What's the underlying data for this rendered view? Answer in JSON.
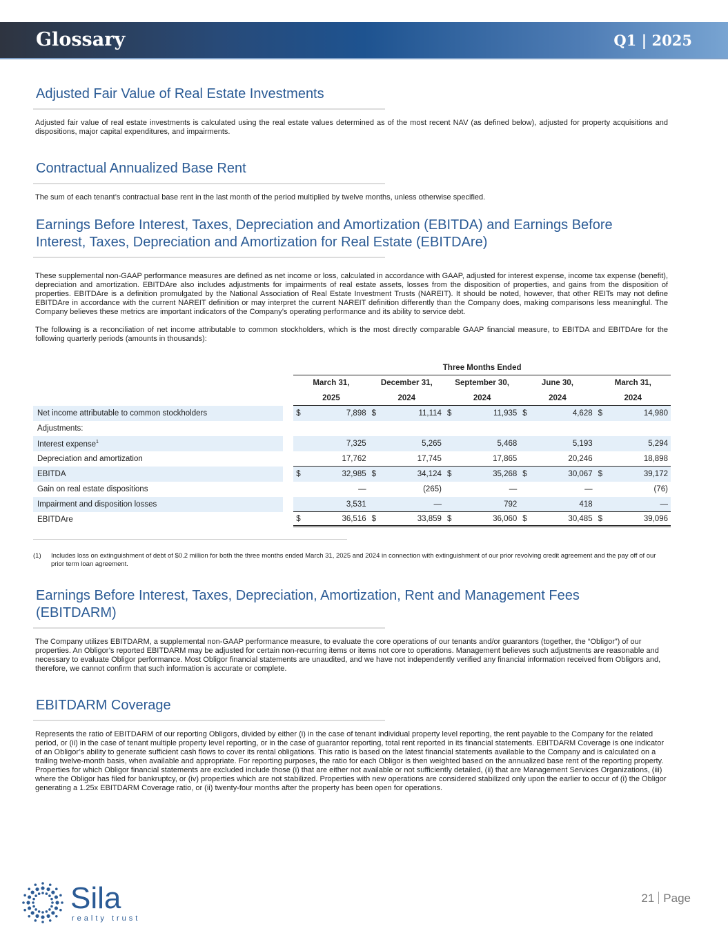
{
  "header": {
    "title": "Glossary",
    "quarter": "Q1",
    "year": "2025"
  },
  "sections": [
    {
      "title": "Adjusted Fair Value of Real Estate Investments",
      "body": "Adjusted fair value of real estate investments is calculated using the real estate values determined as of the most recent NAV (as defined below), adjusted for property acquisitions and dispositions, major capital expenditures, and impairments."
    },
    {
      "title": "Contractual Annualized Base Rent",
      "body": "The sum of each tenant’s contractual base rent in the last month of the period multiplied by twelve months, unless otherwise specified."
    },
    {
      "title": "Earnings Before Interest, Taxes, Depreciation and Amortization (EBITDA) and Earnings Before Interest, Taxes, Depreciation and Amortization for Real Estate (EBITDAre)",
      "body": "These supplemental non-GAAP performance measures are defined as net income or loss, calculated in accordance with GAAP, adjusted for interest expense, income tax expense (benefit), depreciation and amortization. EBITDAre also includes adjustments for impairments of real estate assets, losses from the disposition of properties, and gains from the disposition of properties. EBITDAre is a definition promulgated by the National Association of Real Estate Investment Trusts (NAREIT). It should be noted, however, that other REITs may not define EBITDAre in accordance with the current NAREIT definition or may interpret the current NAREIT definition differently than the Company does, making comparisons less meaningful. The Company believes these metrics are important indicators of the Company’s operating performance and its ability to service debt.",
      "body2": "The following is a reconciliation of net income attributable to common stockholders, which is the most directly comparable GAAP financial measure, to EBITDA and EBITDAre for the following quarterly periods (amounts in thousands):"
    },
    {
      "title": "Earnings Before Interest, Taxes, Depreciation, Amortization, Rent and Management Fees (EBITDARM)",
      "body": "The Company utilizes EBITDARM, a supplemental non-GAAP performance measure, to evaluate the core operations of our tenants and/or guarantors (together, the “Obligor”) of our properties. An Obligor’s reported EBITDARM may be adjusted for certain non-recurring items or items not core to operations. Management believes such adjustments are reasonable and necessary to evaluate Obligor performance. Most Obligor financial statements are unaudited, and we have not independently verified any financial information received from Obligors and, therefore, we cannot confirm that such information is accurate or complete."
    },
    {
      "title": "EBITDARM Coverage",
      "body": "Represents the ratio of EBITDARM of our reporting Obligors, divided by either (i) in the case of tenant individual property level reporting, the rent payable to the Company for the related period, or (ii) in the case of tenant multiple property level reporting, or in the case of guarantor reporting, total rent reported in its financial statements. EBITDARM Coverage is one indicator of an Obligor’s ability to generate sufficient cash flows to cover its rental obligations. This ratio is based on the latest financial statements available to the Company and is calculated on a trailing twelve-month basis, when available and appropriate. For reporting purposes, the ratio for each Obligor is then weighted based on the annualized base rent of the reporting property. Properties for which Obligor financial statements are excluded include those (i) that are either not available or not sufficiently detailed, (ii) that are Management Services Organizations, (iii) where the Obligor has filed for bankruptcy, or (iv) properties which are not stabilized. Properties with new operations are considered stabilized only upon the earlier to occur of (i) the Obligor generating a 1.25x EBITDARM Coverage ratio, or (ii) twenty-four months after the property has been open for operations."
    }
  ],
  "table": {
    "group_header": "Three Months Ended",
    "columns": [
      {
        "month": "March 31,",
        "year": "2025"
      },
      {
        "month": "December 31,",
        "year": "2024"
      },
      {
        "month": "September 30,",
        "year": "2024"
      },
      {
        "month": "June 30,",
        "year": "2024"
      },
      {
        "month": "March 31,",
        "year": "2024"
      }
    ],
    "currency": "$",
    "rows": [
      {
        "label": "Net income attributable to common stockholders",
        "values": [
          "7,898",
          "11,114",
          "11,935",
          "4,628",
          "14,980"
        ]
      },
      {
        "label": "Adjustments:",
        "values": []
      },
      {
        "label": "Interest expense",
        "sup": "1",
        "values": [
          "7,325",
          "5,265",
          "5,468",
          "5,193",
          "5,294"
        ]
      },
      {
        "label": "Depreciation and amortization",
        "values": [
          "17,762",
          "17,745",
          "17,865",
          "20,246",
          "18,898"
        ]
      },
      {
        "label": "EBITDA",
        "values": [
          "32,985",
          "34,124",
          "35,268",
          "30,067",
          "39,172"
        ]
      },
      {
        "label": "Gain on real estate dispositions",
        "values": [
          "—",
          "(265)",
          "—",
          "—",
          "(76)"
        ]
      },
      {
        "label": "Impairment and disposition losses",
        "values": [
          "3,531",
          "—",
          "792",
          "418",
          "—"
        ]
      },
      {
        "label": "EBITDAre",
        "values": [
          "36,516",
          "33,859",
          "36,060",
          "30,485",
          "39,096"
        ]
      }
    ]
  },
  "footnote": {
    "marker": "(1)",
    "text": "Includes loss on extinguishment of debt of $0.2 million for both the three months ended March 31, 2025 and 2024 in connection with extinguishment of our prior revolving credit agreement and the pay off of our prior term loan agreement."
  },
  "logo": {
    "name": "Sila",
    "tagline": "realty trust"
  },
  "footer": {
    "page_number": "21",
    "page_label": "Page"
  },
  "colors": {
    "heading": "#2b5b95",
    "shade": "#e4eff9"
  }
}
